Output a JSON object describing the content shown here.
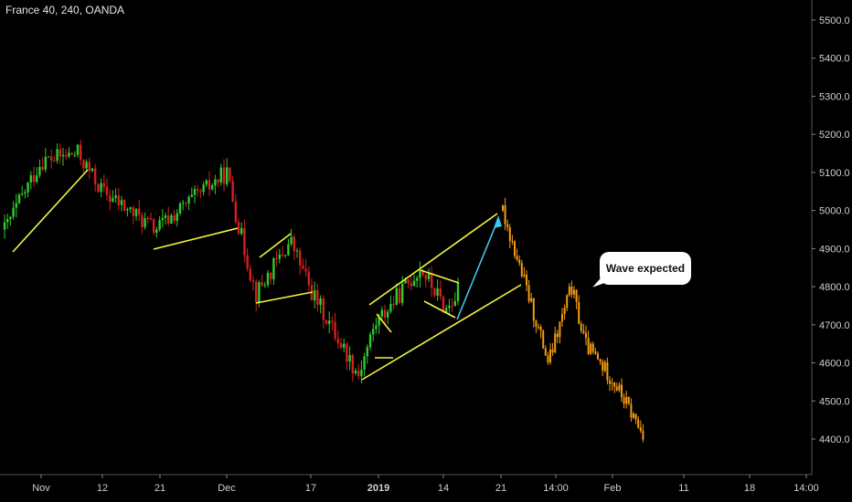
{
  "header": {
    "symbol_label": "France 40, 240, OANDA"
  },
  "callout": {
    "text": "Wave expected"
  },
  "colors": {
    "background": "#000000",
    "bull_candle": "#2ecc2e",
    "bear_candle": "#d42020",
    "projection": "#f39c12",
    "trend_lines": "#f5f542",
    "arrow": "#3ec7e6",
    "axis_text": "#cfcfcf"
  },
  "chart_data": {
    "type": "candlestick",
    "ylim": [
      4300,
      5600
    ],
    "y_ticks": [
      "5500.0",
      "5400.0",
      "5300.0",
      "5200.0",
      "5100.0",
      "5000.0",
      "4900.0",
      "4800.0",
      "4700.0",
      "4600.0",
      "4500.0",
      "4400.0"
    ],
    "x_ticks": [
      "Nov",
      "12",
      "21",
      "Dec",
      "17",
      "2019",
      "14",
      "21",
      "14:00",
      "Feb",
      "11",
      "18",
      "14:00"
    ],
    "price_path": [
      {
        "x": "start",
        "y": 4950
      },
      {
        "x": "Nov",
        "y": 5130
      },
      {
        "x": "mid-Nov",
        "y": 5150
      },
      {
        "x": "12",
        "y": 5050
      },
      {
        "x": "21",
        "y": 4950
      },
      {
        "x": "Dec",
        "y": 5100
      },
      {
        "x": "Dec+",
        "y": 4950
      },
      {
        "x": "Dec+",
        "y": 4780
      },
      {
        "x": "Dec+",
        "y": 4920
      },
      {
        "x": "17",
        "y": 4790
      },
      {
        "x": "2019-",
        "y": 4570
      },
      {
        "x": "2019",
        "y": 4700
      },
      {
        "x": "2019+",
        "y": 4850
      },
      {
        "x": "14",
        "y": 4740
      },
      {
        "x": "14+",
        "y": 4790
      }
    ],
    "projection_path": [
      {
        "x": "21",
        "y": 5000
      },
      {
        "x": "21+",
        "y": 4800
      },
      {
        "x": "14:00-",
        "y": 4600
      },
      {
        "x": "14:00",
        "y": 4800
      },
      {
        "x": "14:00+",
        "y": 4650
      },
      {
        "x": "Feb",
        "y": 4550
      },
      {
        "x": "Feb+",
        "y": 4400
      }
    ]
  }
}
